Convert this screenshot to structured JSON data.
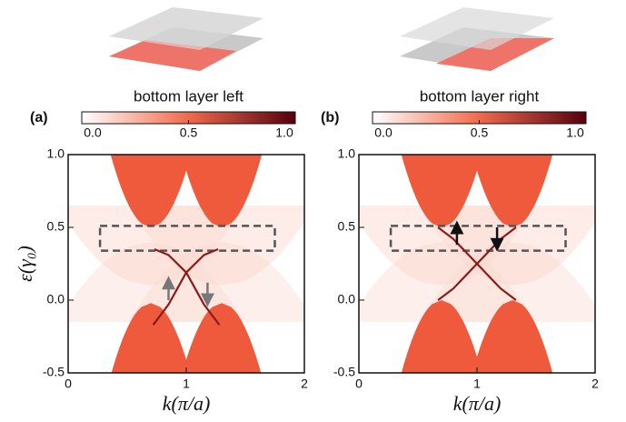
{
  "chart_data": [
    {
      "type": "line",
      "panel_label": "(a)",
      "colorbar_label": "bottom layer left",
      "colorbar_ticks": [
        {
          "value": 0,
          "label": "0.0"
        },
        {
          "value": 0.5,
          "label": "0.5"
        },
        {
          "value": 1,
          "label": "1.0"
        }
      ],
      "xlabel": "k(π/a)",
      "ylabel": "ε(γ₀)",
      "xlim": [
        0,
        2
      ],
      "ylim": [
        -0.5,
        1.0
      ],
      "xticks": [
        0,
        1,
        2
      ],
      "yticks": [
        {
          "value": -0.5,
          "label": "-0.5"
        },
        {
          "value": 0,
          "label": "0.0"
        },
        {
          "value": 0.5,
          "label": "0.5"
        },
        {
          "value": 1,
          "label": "1.0"
        }
      ],
      "series": [
        {
          "color": "#8b1a1a",
          "x": [
            0.72,
            0.85,
            1.0,
            1.15,
            1.27
          ],
          "values": [
            -0.17,
            -0.03,
            0.19,
            0.31,
            0.35
          ]
        },
        {
          "color": "#8b1a1a",
          "x": [
            0.73,
            0.85,
            1.0,
            1.15,
            1.28
          ],
          "values": [
            0.35,
            0.31,
            0.19,
            -0.03,
            -0.17
          ]
        }
      ]
    },
    {
      "type": "line",
      "panel_label": "(b)",
      "colorbar_label": "bottom layer right",
      "colorbar_ticks": [
        {
          "value": 0,
          "label": "0.0"
        },
        {
          "value": 0.5,
          "label": "0.5"
        },
        {
          "value": 1,
          "label": "1.0"
        }
      ],
      "xlabel": "k(π/a)",
      "xlim": [
        0,
        2
      ],
      "ylim": [
        -0.5,
        1.0
      ],
      "xticks": [
        0,
        1,
        2
      ],
      "yticks": [
        {
          "value": -0.5,
          "label": "-0.5"
        },
        {
          "value": 0,
          "label": "0.0"
        },
        {
          "value": 0.5,
          "label": "0.5"
        },
        {
          "value": 1,
          "label": "1.0"
        }
      ],
      "series": [
        {
          "color": "#8b1a1a",
          "x": [
            0.67,
            0.8,
            1.0,
            1.2,
            1.33
          ],
          "values": [
            0.5,
            0.42,
            0.25,
            0.08,
            0.0
          ]
        },
        {
          "color": "#8b1a1a",
          "x": [
            0.67,
            0.8,
            1.0,
            1.2,
            1.33
          ],
          "values": [
            0.0,
            0.08,
            0.25,
            0.42,
            0.5
          ]
        }
      ]
    }
  ]
}
